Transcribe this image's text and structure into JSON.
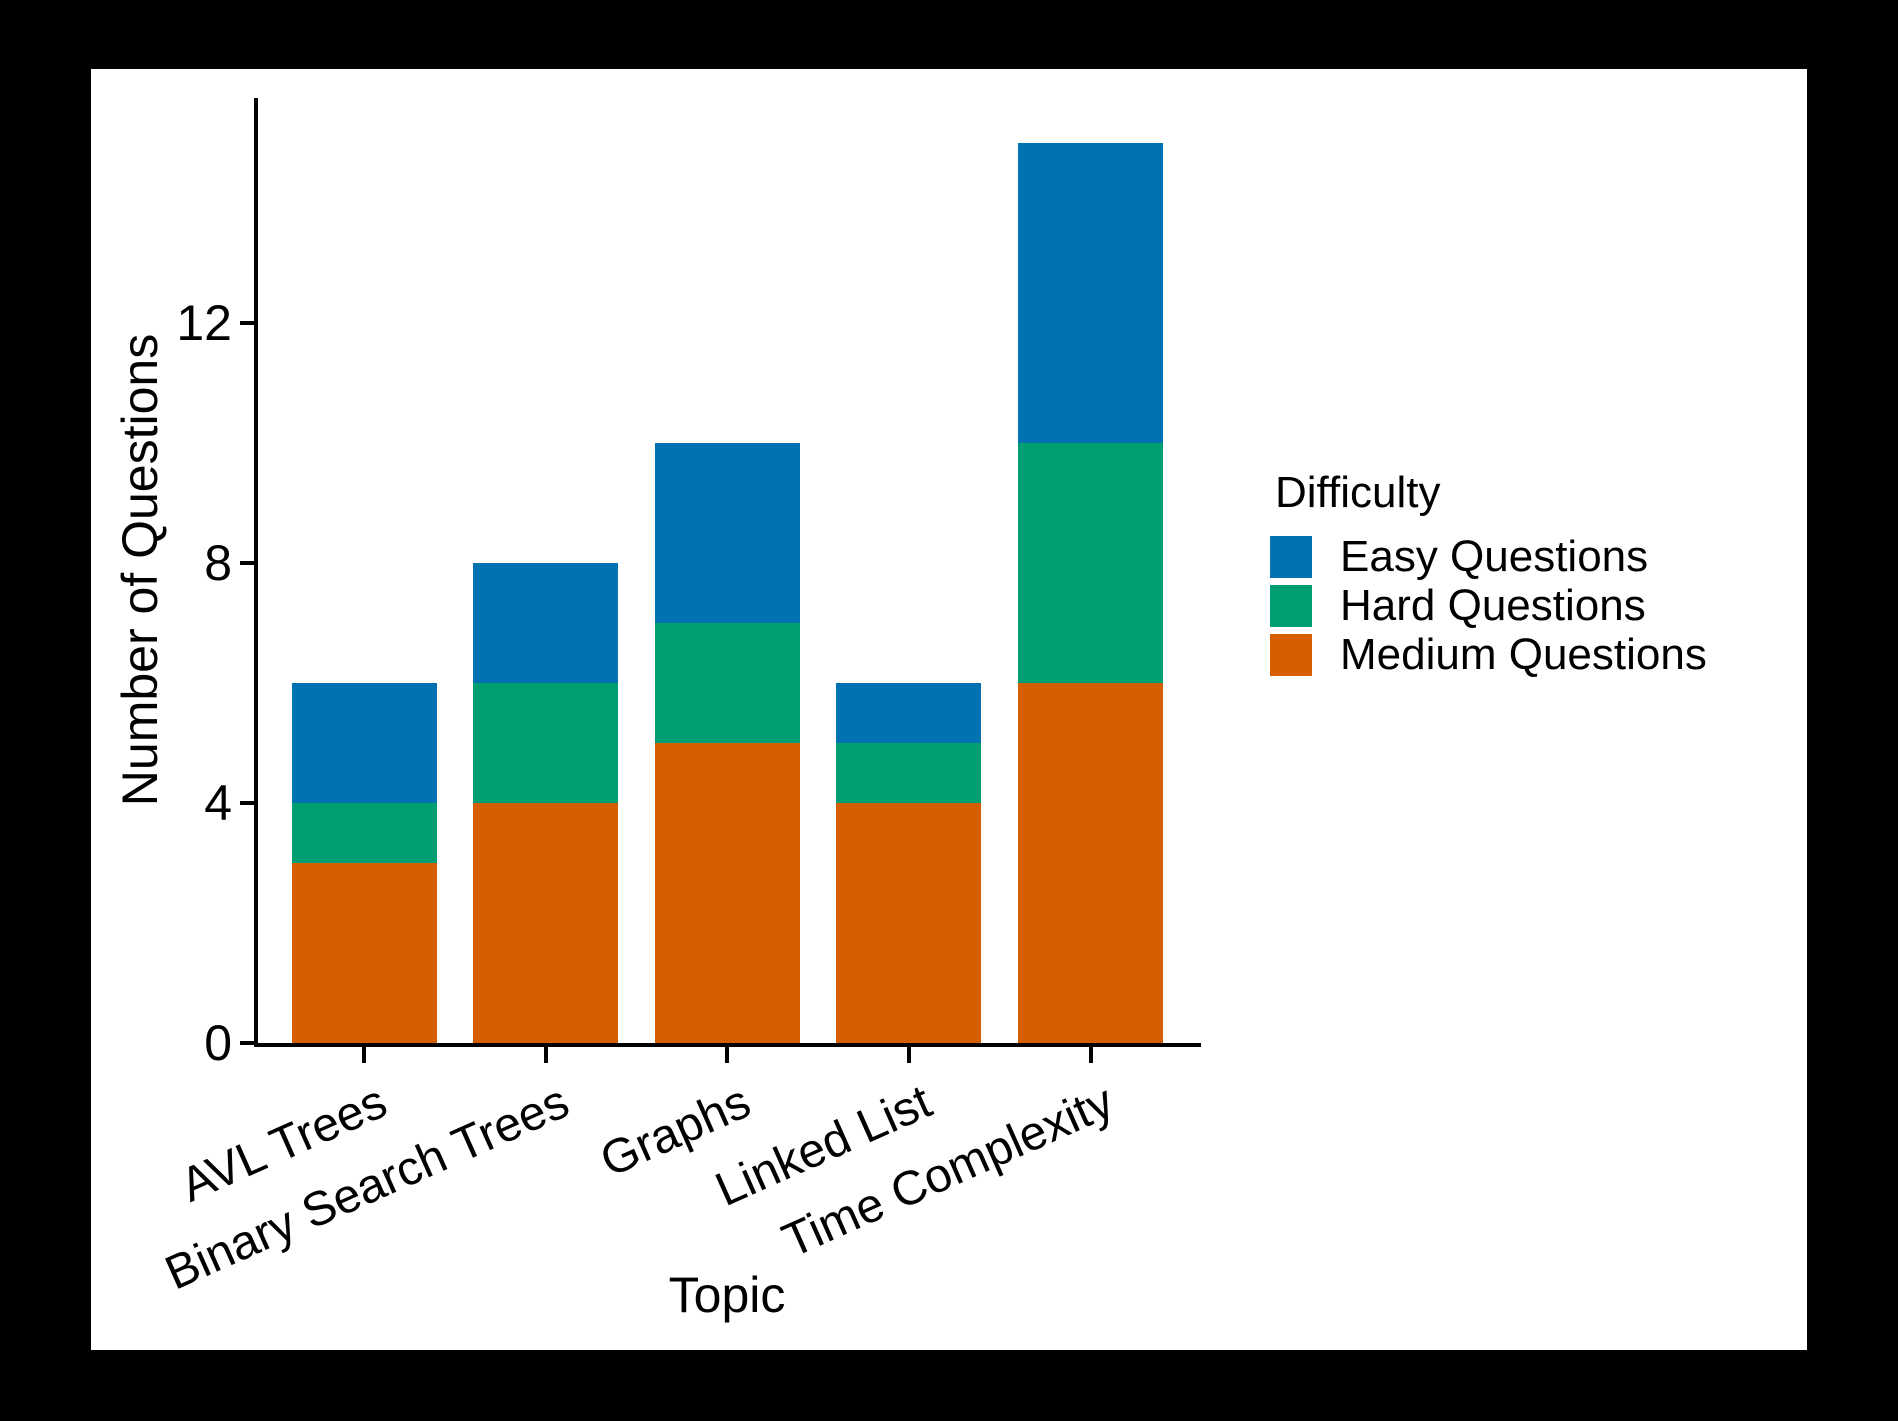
{
  "window": {
    "background": "#000000",
    "panel_background": "#FFFFFF",
    "axis_color": "#000000",
    "text_color": "#000000"
  },
  "chart_data": {
    "type": "bar",
    "stacked": true,
    "xlabel": "Topic",
    "ylabel": "Number of Questions",
    "categories": [
      "AVL Trees",
      "Binary Search Trees",
      "Graphs",
      "Linked List",
      "Time Complexity"
    ],
    "series": [
      {
        "name": "Easy Questions",
        "color": "#0072B2",
        "values": [
          2,
          2,
          3,
          1,
          5
        ]
      },
      {
        "name": "Hard Questions",
        "color": "#009E73",
        "values": [
          1,
          2,
          2,
          1,
          4
        ]
      },
      {
        "name": "Medium Questions",
        "color": "#D55E00",
        "values": [
          3,
          4,
          5,
          4,
          6
        ]
      }
    ],
    "stack_order_bottom_to_top": [
      "Medium Questions",
      "Hard Questions",
      "Easy Questions"
    ],
    "y_ticks": [
      0,
      4,
      8,
      12
    ],
    "ylim": [
      0,
      15.75
    ],
    "grid": false,
    "legend": {
      "title": "Difficulty",
      "position": "right"
    }
  }
}
